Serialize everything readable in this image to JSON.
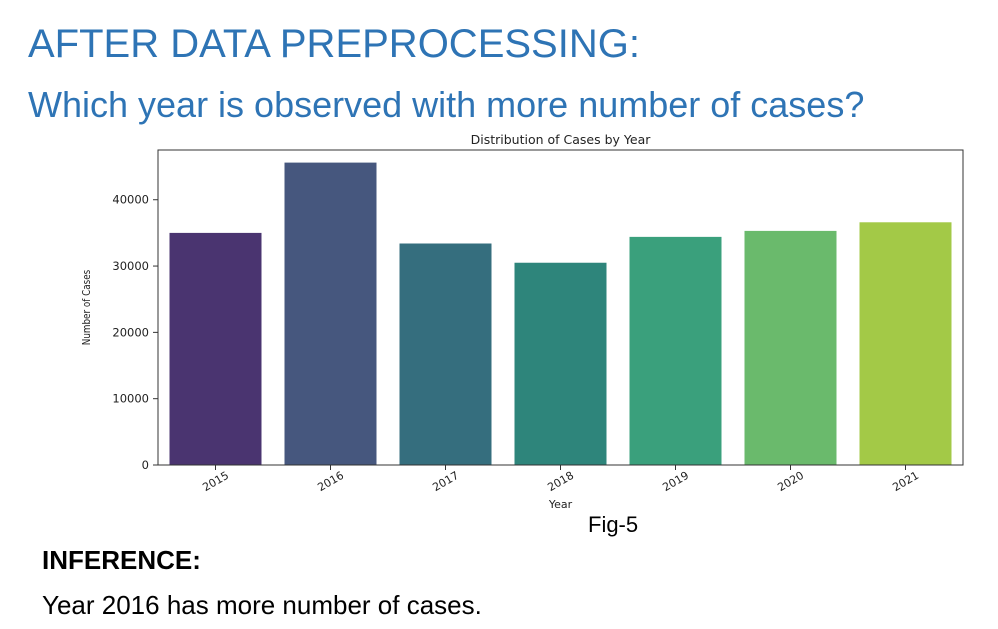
{
  "slide": {
    "title": "AFTER DATA PREPROCESSING:",
    "question": "Which year is observed with more number of cases?",
    "figure_caption": "Fig-5",
    "inference_heading": "INFERENCE:",
    "inference_text": "Year 2016 has more number of cases."
  },
  "chart_data": {
    "type": "bar",
    "title": "Distribution of Cases by Year",
    "xlabel": "Year",
    "ylabel": "Number of Cases",
    "categories": [
      "2015",
      "2016",
      "2017",
      "2018",
      "2019",
      "2020",
      "2021"
    ],
    "values": [
      35000,
      45600,
      33400,
      30500,
      34400,
      35300,
      36600
    ],
    "colors": [
      "#4a3470",
      "#46577e",
      "#356e7e",
      "#2e857b",
      "#3aa07c",
      "#6aba6c",
      "#a3c947"
    ],
    "ylim": [
      0,
      47500
    ],
    "yticks": [
      0,
      10000,
      20000,
      30000,
      40000
    ],
    "grid": false,
    "legend": "none"
  }
}
